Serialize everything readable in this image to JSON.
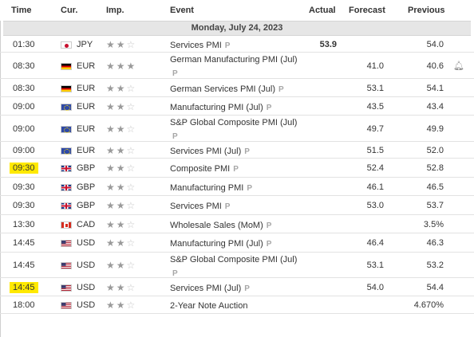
{
  "header": {
    "time": "Time",
    "cur": "Cur.",
    "imp": "Imp.",
    "event": "Event",
    "actual": "Actual",
    "forecast": "Forecast",
    "previous": "Previous"
  },
  "date": "Monday, July 24, 2023",
  "p_mark": "P",
  "colors": {
    "highlight": "#ffe900",
    "star_filled": "#9a9a9a",
    "star_empty": "#c6c6c6"
  },
  "rows": [
    {
      "time": "01:30",
      "flag": "jp",
      "cur": "JPY",
      "stars": 2,
      "event": "Services PMI",
      "p": "inline",
      "actual": "53.9",
      "forecast": "",
      "previous": "54.0"
    },
    {
      "time": "08:30",
      "flag": "de",
      "cur": "EUR",
      "stars": 3,
      "event": "German Manufacturing PMI (Jul)",
      "p": "block",
      "actual": "",
      "forecast": "41.0",
      "previous": "40.6",
      "bell": true
    },
    {
      "time": "08:30",
      "flag": "de",
      "cur": "EUR",
      "stars": 2,
      "event": "German Services PMI (Jul)",
      "p": "inline",
      "actual": "",
      "forecast": "53.1",
      "previous": "54.1"
    },
    {
      "time": "09:00",
      "flag": "eu",
      "cur": "EUR",
      "stars": 2,
      "event": "Manufacturing PMI (Jul)",
      "p": "inline",
      "actual": "",
      "forecast": "43.5",
      "previous": "43.4"
    },
    {
      "time": "09:00",
      "flag": "eu",
      "cur": "EUR",
      "stars": 2,
      "event": "S&P Global Composite PMI (Jul)",
      "p": "block",
      "actual": "",
      "forecast": "49.7",
      "previous": "49.9"
    },
    {
      "time": "09:00",
      "flag": "eu",
      "cur": "EUR",
      "stars": 2,
      "event": "Services PMI (Jul)",
      "p": "inline",
      "actual": "",
      "forecast": "51.5",
      "previous": "52.0"
    },
    {
      "time": "09:30",
      "flag": "gb",
      "cur": "GBP",
      "stars": 2,
      "event": "Composite PMI",
      "p": "inline",
      "actual": "",
      "forecast": "52.4",
      "previous": "52.8",
      "highlight": true
    },
    {
      "time": "09:30",
      "flag": "gb",
      "cur": "GBP",
      "stars": 2,
      "event": "Manufacturing PMI",
      "p": "inline",
      "actual": "",
      "forecast": "46.1",
      "previous": "46.5"
    },
    {
      "time": "09:30",
      "flag": "gb",
      "cur": "GBP",
      "stars": 2,
      "event": "Services PMI",
      "p": "inline",
      "actual": "",
      "forecast": "53.0",
      "previous": "53.7"
    },
    {
      "time": "13:30",
      "flag": "ca",
      "cur": "CAD",
      "stars": 2,
      "event": "Wholesale Sales (MoM)",
      "p": "inline",
      "actual": "",
      "forecast": "",
      "previous": "3.5%"
    },
    {
      "time": "14:45",
      "flag": "us",
      "cur": "USD",
      "stars": 2,
      "event": "Manufacturing PMI (Jul)",
      "p": "inline",
      "actual": "",
      "forecast": "46.4",
      "previous": "46.3"
    },
    {
      "time": "14:45",
      "flag": "us",
      "cur": "USD",
      "stars": 2,
      "event": "S&P Global Composite PMI (Jul)",
      "p": "block",
      "actual": "",
      "forecast": "53.1",
      "previous": "53.2"
    },
    {
      "time": "14:45",
      "flag": "us",
      "cur": "USD",
      "stars": 2,
      "event": "Services PMI (Jul)",
      "p": "inline",
      "actual": "",
      "forecast": "54.0",
      "previous": "54.4",
      "highlight": true
    },
    {
      "time": "18:00",
      "flag": "us",
      "cur": "USD",
      "stars": 2,
      "event": "2-Year Note Auction",
      "p": "",
      "actual": "",
      "forecast": "",
      "previous": "4.670%"
    }
  ]
}
